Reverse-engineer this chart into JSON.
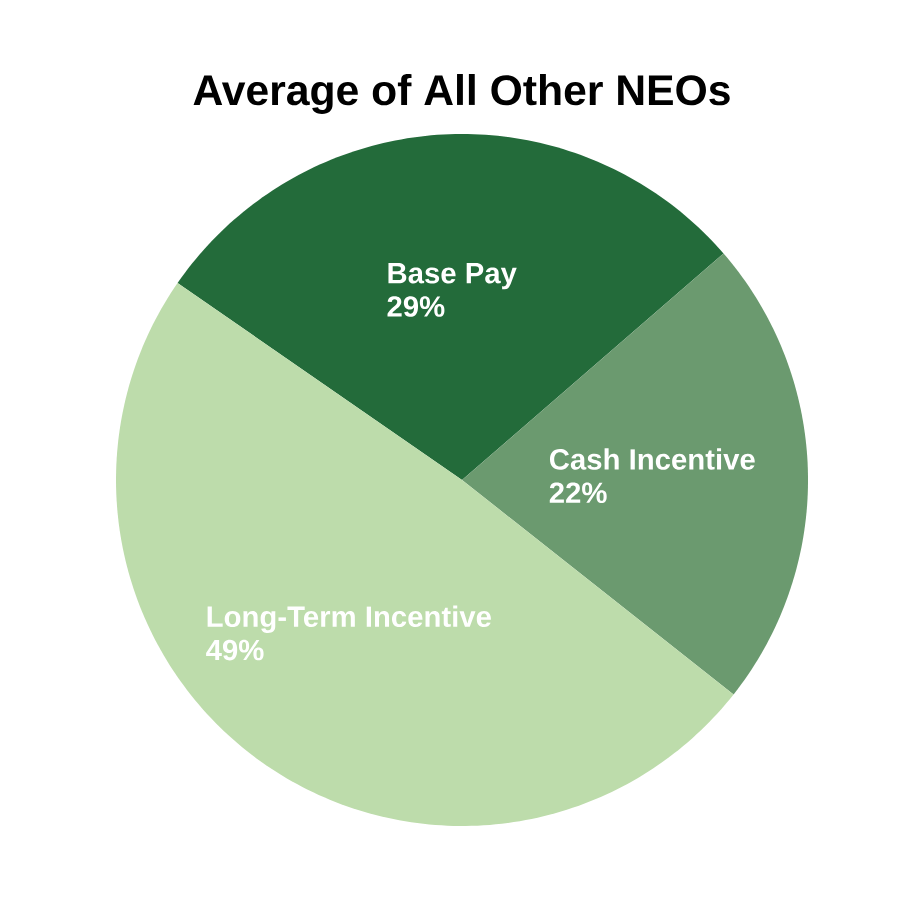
{
  "chart_data": {
    "type": "pie",
    "title": "Average of All Other NEOs",
    "categories": [
      "Base Pay",
      "Cash Incentive",
      "Long-Term Incentive"
    ],
    "values": [
      29,
      22,
      49
    ],
    "value_labels": [
      "29%",
      "22%",
      "49%"
    ],
    "colors": [
      "#236b3a",
      "#6b9a6f",
      "#bddcab"
    ]
  }
}
